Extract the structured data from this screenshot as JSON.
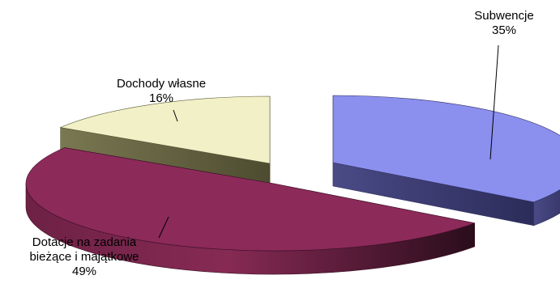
{
  "chart_data": {
    "type": "pie",
    "style": "3d-exploded",
    "slices": [
      {
        "label_lines": [
          "Subwencje"
        ],
        "value": 35,
        "value_label": "35%",
        "color": "#8b8fee",
        "side_color": "#3e3e74"
      },
      {
        "label_lines": [
          "Dotacje na zadania",
          "bieżące i majątkowe"
        ],
        "value": 49,
        "value_label": "49%",
        "color": "#8c2a5a",
        "side_color": "#5e1c3b"
      },
      {
        "label_lines": [
          "Dochody własne"
        ],
        "value": 16,
        "value_label": "16%",
        "color": "#f2f0c6",
        "side_color": "#6b6947"
      }
    ]
  }
}
